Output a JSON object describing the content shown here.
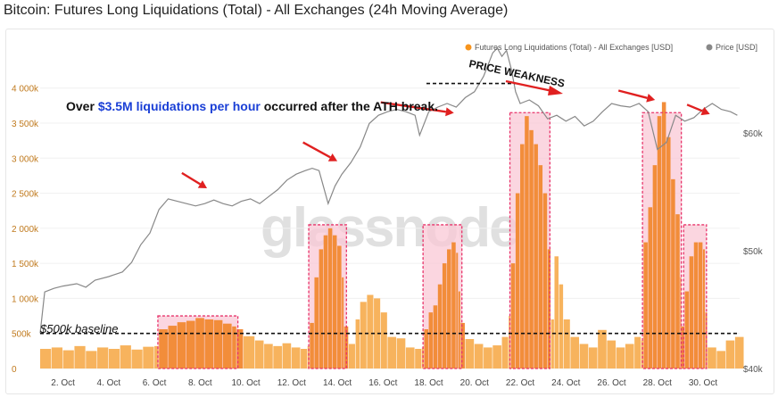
{
  "title": "Bitcoin: Futures Long Liquidations (Total) - All Exchanges (24h Moving Average)",
  "legend": {
    "series_label": "Futures Long Liquidations (Total) - All Exchanges [USD]",
    "price_label": "Price [USD]",
    "series_color": "#f7941d",
    "price_color": "#888888"
  },
  "watermark": "glassnode",
  "annotations": {
    "main_pre": "Over ",
    "main_highlight": "$3.5M liquidations per hour",
    "main_post": " occurred after the ATH break.",
    "weakness": "PRICE WEAKNESS",
    "baseline": "$500k baseline"
  },
  "colors": {
    "bar_light": "#f7b35d",
    "bar_dark": "#f28d3a",
    "highlight_fill": "#f9c8d6",
    "highlight_border": "#e8336a",
    "arrow": "#e02020",
    "annotation_blue": "#1a3fd6"
  },
  "chart_data": {
    "type": "bar",
    "x_ticks": [
      "2. Oct",
      "4. Oct",
      "6. Oct",
      "8. Oct",
      "10. Oct",
      "12. Oct",
      "14. Oct",
      "16. Oct",
      "18. Oct",
      "20. Oct",
      "22. Oct",
      "24. Oct",
      "26. Oct",
      "28. Oct",
      "30. Oct"
    ],
    "y_left_ticks": [
      "0",
      "500k",
      "1 000k",
      "1 500k",
      "2 000k",
      "2 500k",
      "3 000k",
      "3 500k",
      "4 000k"
    ],
    "y_right_ticks": [
      "$40k",
      "$50k",
      "$60k"
    ],
    "ylim_left": [
      0,
      4200000
    ],
    "ylim_right": [
      40000,
      65000
    ],
    "xlim_days": [
      1.0,
      31.6
    ],
    "baseline_value": 500000,
    "liquidations": [
      [
        1.0,
        280000
      ],
      [
        1.5,
        300000
      ],
      [
        2.0,
        260000
      ],
      [
        2.5,
        320000
      ],
      [
        3.0,
        250000
      ],
      [
        3.5,
        300000
      ],
      [
        4.0,
        280000
      ],
      [
        4.5,
        330000
      ],
      [
        5.0,
        270000
      ],
      [
        5.5,
        310000
      ],
      [
        6.0,
        320000
      ],
      [
        6.2,
        560000
      ],
      [
        6.6,
        610000
      ],
      [
        7.0,
        660000
      ],
      [
        7.4,
        680000
      ],
      [
        7.8,
        720000
      ],
      [
        8.2,
        700000
      ],
      [
        8.6,
        690000
      ],
      [
        9.0,
        640000
      ],
      [
        9.4,
        600000
      ],
      [
        9.6,
        560000
      ],
      [
        9.9,
        460000
      ],
      [
        10.4,
        400000
      ],
      [
        10.8,
        350000
      ],
      [
        11.2,
        320000
      ],
      [
        11.6,
        360000
      ],
      [
        12.0,
        300000
      ],
      [
        12.4,
        280000
      ],
      [
        12.7,
        320000
      ],
      [
        12.8,
        650000
      ],
      [
        13.0,
        1300000
      ],
      [
        13.2,
        1700000
      ],
      [
        13.4,
        1900000
      ],
      [
        13.6,
        2000000
      ],
      [
        13.8,
        1900000
      ],
      [
        14.0,
        1750000
      ],
      [
        14.2,
        1300000
      ],
      [
        14.3,
        600000
      ],
      [
        14.5,
        350000
      ],
      [
        14.8,
        700000
      ],
      [
        15.0,
        950000
      ],
      [
        15.3,
        1050000
      ],
      [
        15.6,
        1000000
      ],
      [
        15.9,
        800000
      ],
      [
        16.2,
        450000
      ],
      [
        16.6,
        430000
      ],
      [
        17.0,
        300000
      ],
      [
        17.4,
        280000
      ],
      [
        17.7,
        300000
      ],
      [
        17.8,
        560000
      ],
      [
        18.0,
        800000
      ],
      [
        18.2,
        900000
      ],
      [
        18.4,
        1200000
      ],
      [
        18.6,
        1500000
      ],
      [
        18.8,
        1700000
      ],
      [
        19.0,
        1800000
      ],
      [
        19.2,
        1650000
      ],
      [
        19.3,
        1100000
      ],
      [
        19.4,
        650000
      ],
      [
        19.6,
        420000
      ],
      [
        20.0,
        350000
      ],
      [
        20.4,
        300000
      ],
      [
        20.8,
        330000
      ],
      [
        21.2,
        450000
      ],
      [
        21.5,
        750000
      ],
      [
        21.6,
        1500000
      ],
      [
        21.8,
        2500000
      ],
      [
        22.0,
        3200000
      ],
      [
        22.2,
        3600000
      ],
      [
        22.4,
        3400000
      ],
      [
        22.6,
        3200000
      ],
      [
        22.8,
        2900000
      ],
      [
        23.0,
        2500000
      ],
      [
        23.2,
        1700000
      ],
      [
        23.35,
        700000
      ],
      [
        23.5,
        1600000
      ],
      [
        23.7,
        1200000
      ],
      [
        23.9,
        700000
      ],
      [
        24.2,
        450000
      ],
      [
        24.6,
        350000
      ],
      [
        25.0,
        300000
      ],
      [
        25.4,
        550000
      ],
      [
        25.8,
        400000
      ],
      [
        26.2,
        300000
      ],
      [
        26.6,
        350000
      ],
      [
        27.0,
        450000
      ],
      [
        27.3,
        400000
      ],
      [
        27.4,
        1800000
      ],
      [
        27.6,
        2300000
      ],
      [
        27.8,
        2900000
      ],
      [
        28.0,
        3600000
      ],
      [
        28.2,
        3800000
      ],
      [
        28.4,
        3300000
      ],
      [
        28.6,
        2700000
      ],
      [
        28.8,
        2200000
      ],
      [
        29.0,
        1300000
      ],
      [
        29.05,
        600000
      ],
      [
        29.2,
        1100000
      ],
      [
        29.4,
        1600000
      ],
      [
        29.6,
        1800000
      ],
      [
        29.8,
        1800000
      ],
      [
        30.0,
        1700000
      ],
      [
        30.1,
        800000
      ],
      [
        30.2,
        300000
      ],
      [
        30.6,
        250000
      ],
      [
        31.0,
        400000
      ],
      [
        31.4,
        450000
      ]
    ],
    "price": [
      [
        1.0,
        43000
      ],
      [
        1.2,
        46500
      ],
      [
        1.6,
        46800
      ],
      [
        2.0,
        47000
      ],
      [
        2.6,
        47200
      ],
      [
        3.0,
        46900
      ],
      [
        3.4,
        47500
      ],
      [
        4.0,
        47800
      ],
      [
        4.6,
        48200
      ],
      [
        5.0,
        49000
      ],
      [
        5.4,
        50500
      ],
      [
        5.8,
        51500
      ],
      [
        6.2,
        53500
      ],
      [
        6.6,
        54400
      ],
      [
        7.0,
        54200
      ],
      [
        7.4,
        54000
      ],
      [
        7.8,
        53800
      ],
      [
        8.2,
        54000
      ],
      [
        8.6,
        54300
      ],
      [
        9.0,
        54000
      ],
      [
        9.4,
        53800
      ],
      [
        9.8,
        54200
      ],
      [
        10.2,
        54400
      ],
      [
        10.6,
        54000
      ],
      [
        11.0,
        54600
      ],
      [
        11.4,
        55200
      ],
      [
        11.8,
        56000
      ],
      [
        12.2,
        56500
      ],
      [
        12.6,
        56800
      ],
      [
        12.9,
        57000
      ],
      [
        13.2,
        56800
      ],
      [
        13.6,
        54000
      ],
      [
        13.9,
        55500
      ],
      [
        14.2,
        56500
      ],
      [
        14.6,
        57500
      ],
      [
        15.0,
        58800
      ],
      [
        15.4,
        60800
      ],
      [
        15.8,
        61500
      ],
      [
        16.2,
        61800
      ],
      [
        16.6,
        62000
      ],
      [
        17.0,
        61800
      ],
      [
        17.4,
        61500
      ],
      [
        17.6,
        59800
      ],
      [
        18.0,
        61800
      ],
      [
        18.4,
        62200
      ],
      [
        18.8,
        62500
      ],
      [
        19.2,
        62200
      ],
      [
        19.6,
        63000
      ],
      [
        20.0,
        63500
      ],
      [
        20.4,
        64800
      ],
      [
        20.8,
        66800
      ],
      [
        21.0,
        67200
      ],
      [
        21.2,
        66500
      ],
      [
        21.4,
        67000
      ],
      [
        21.6,
        65500
      ],
      [
        21.8,
        63500
      ],
      [
        22.0,
        62500
      ],
      [
        22.4,
        62800
      ],
      [
        22.8,
        62300
      ],
      [
        23.2,
        61200
      ],
      [
        23.6,
        61500
      ],
      [
        24.0,
        61000
      ],
      [
        24.4,
        61400
      ],
      [
        24.8,
        60600
      ],
      [
        25.2,
        61000
      ],
      [
        25.6,
        61800
      ],
      [
        26.0,
        62500
      ],
      [
        26.4,
        62300
      ],
      [
        26.8,
        62200
      ],
      [
        27.2,
        62500
      ],
      [
        27.6,
        61800
      ],
      [
        28.0,
        58600
      ],
      [
        28.4,
        59200
      ],
      [
        28.8,
        61500
      ],
      [
        29.2,
        61000
      ],
      [
        29.6,
        61300
      ],
      [
        30.0,
        62000
      ],
      [
        30.4,
        62500
      ],
      [
        30.8,
        62000
      ],
      [
        31.2,
        61800
      ],
      [
        31.5,
        61500
      ]
    ],
    "highlight_ranges": [
      {
        "x0": 6.15,
        "x1": 9.65,
        "top": 750000
      },
      {
        "x0": 12.75,
        "x1": 14.4,
        "top": 2050000
      },
      {
        "x0": 17.75,
        "x1": 19.45,
        "top": 2050000
      },
      {
        "x0": 21.55,
        "x1": 23.3,
        "top": 3650000
      },
      {
        "x0": 27.35,
        "x1": 29.05,
        "top": 3650000
      },
      {
        "x0": 29.15,
        "x1": 30.15,
        "top": 2050000
      }
    ],
    "arrows": [
      {
        "x0": 7.2,
        "x1": 8.3,
        "p0": 56600,
        "p1": 55300
      },
      {
        "x0": 12.5,
        "x1": 14.0,
        "p0": 59200,
        "p1": 57600
      },
      {
        "x0": 15.9,
        "x1": 19.1,
        "p0": 62600,
        "p1": 61700
      },
      {
        "x0": 26.3,
        "x1": 27.9,
        "p0": 63600,
        "p1": 62800
      },
      {
        "x0": 29.3,
        "x1": 30.3,
        "p0": 62400,
        "p1": 61600
      }
    ],
    "ath_line": {
      "x0": 17.9,
      "x1": 21.9,
      "price": 64200
    }
  }
}
